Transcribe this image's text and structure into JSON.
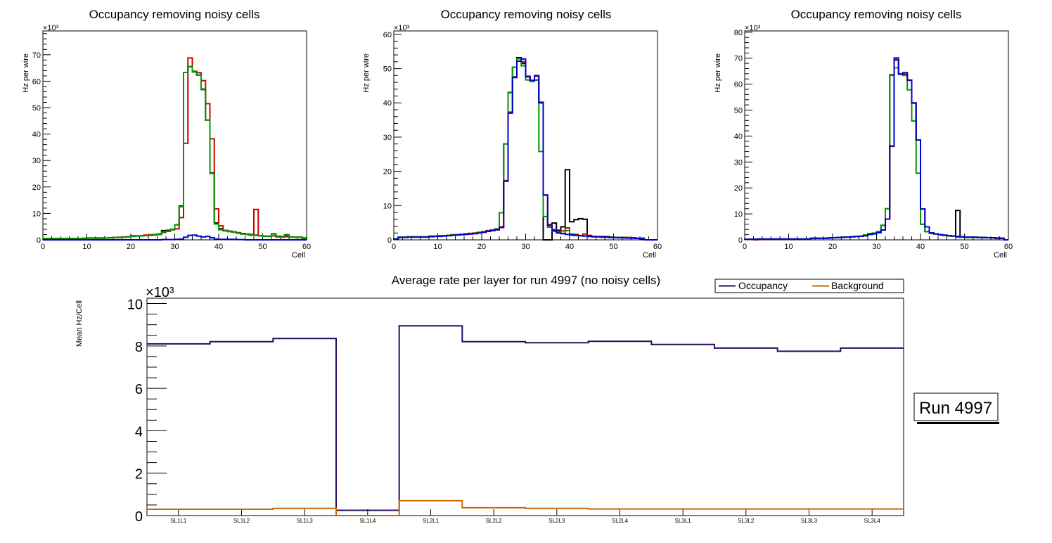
{
  "chart_data": [
    {
      "type": "line",
      "subtype": "step-histogram",
      "title": "Occupancy removing noisy cells",
      "xlabel": "Cell",
      "ylabel": "Hz per wire",
      "y_multiplier_label": "×10³",
      "xlim": [
        0,
        60
      ],
      "ylim": [
        0,
        79
      ],
      "x_ticks": [
        0,
        10,
        20,
        30,
        40,
        50,
        60
      ],
      "y_ticks": [
        0,
        10,
        20,
        30,
        40,
        50,
        60,
        70
      ],
      "bin_edges_start": 0,
      "bin_width": 1,
      "series": [
        {
          "name": "black",
          "color": "#000000",
          "values": [
            0.5,
            0.5,
            0.5,
            0.5,
            0.5,
            0.5,
            0.5,
            0.5,
            0.5,
            0.6,
            0.7,
            0.7,
            0.7,
            0.7,
            0.7,
            0.8,
            0.8,
            0.9,
            1.0,
            1.2,
            1.5,
            1.5,
            1.6,
            1.7,
            1.9,
            2.0,
            2.2,
            3.5,
            3.6,
            4.0,
            5.7,
            12.8,
            63.3,
            65.5,
            63.7,
            62.3,
            57.0,
            45.3,
            25.3,
            6.4,
            4.2,
            3.6,
            3.3,
            3.0,
            2.7,
            2.4,
            2.1,
            1.8,
            1.8,
            1.6,
            1.4,
            1.4,
            2.3,
            1.3,
            1.2,
            1.8,
            1.1,
            1.0,
            1.0,
            0.7
          ]
        },
        {
          "name": "red",
          "color": "#cc0000",
          "values": [
            0.3,
            0.3,
            0.3,
            0.3,
            0.3,
            0.3,
            0.3,
            0.4,
            0.5,
            0.5,
            0.6,
            0.6,
            0.6,
            0.6,
            0.7,
            0.8,
            0.9,
            1.0,
            1.1,
            1.2,
            1.4,
            1.5,
            1.6,
            1.8,
            1.9,
            2.0,
            2.1,
            2.8,
            3.2,
            3.8,
            4.2,
            8.4,
            36.5,
            68.8,
            63.5,
            63.2,
            60.2,
            51.5,
            38.2,
            11.7,
            5.3,
            3.6,
            3.2,
            3.0,
            2.7,
            2.3,
            2.2,
            2.1,
            11.5,
            1.6,
            1.4,
            1.3,
            1.5,
            1.4,
            1.3,
            1.2,
            1.1,
            1.0,
            1.0,
            0.6
          ]
        },
        {
          "name": "green",
          "color": "#009900",
          "values": [
            0.4,
            0.4,
            0.4,
            0.4,
            0.4,
            0.4,
            0.4,
            0.4,
            0.5,
            0.5,
            0.6,
            0.6,
            0.6,
            0.6,
            0.7,
            0.7,
            0.8,
            0.9,
            1.0,
            1.1,
            1.3,
            1.4,
            1.5,
            1.6,
            1.7,
            1.8,
            2.0,
            3.0,
            3.3,
            3.9,
            5.7,
            12.5,
            63.3,
            65.5,
            63.5,
            62.3,
            56.8,
            45.3,
            25.1,
            6.0,
            3.8,
            3.4,
            3.1,
            2.9,
            2.5,
            2.2,
            2.0,
            1.8,
            1.7,
            1.5,
            1.3,
            1.3,
            2.2,
            1.1,
            1.0,
            2.0,
            1.0,
            1.0,
            0.9,
            0.5
          ]
        },
        {
          "name": "blue",
          "color": "#0000cc",
          "values": [
            0,
            0,
            0,
            0,
            0,
            0,
            0,
            0,
            0,
            0,
            0,
            0,
            0,
            0,
            0,
            0,
            0,
            0,
            0,
            0,
            0,
            0,
            0,
            0,
            0,
            0,
            0,
            0.1,
            0.1,
            0.1,
            0.2,
            0.3,
            1.0,
            1.7,
            1.8,
            1.4,
            1.1,
            1.3,
            0.8,
            0.3,
            0.2,
            0.2,
            0.2,
            0.2,
            0.1,
            0.1,
            0,
            0,
            0,
            0,
            0,
            0,
            0,
            0,
            0,
            0,
            0,
            0,
            0,
            0
          ]
        }
      ]
    },
    {
      "type": "line",
      "subtype": "step-histogram",
      "title": "Occupancy removing noisy cells",
      "xlabel": "Cell",
      "ylabel": "Hz per wire",
      "y_multiplier_label": "×10³",
      "xlim": [
        0,
        60
      ],
      "ylim": [
        0,
        61
      ],
      "x_ticks": [
        0,
        10,
        20,
        30,
        40,
        50,
        60
      ],
      "y_ticks": [
        0,
        10,
        20,
        30,
        40,
        50,
        60
      ],
      "bin_edges_start": 0,
      "bin_width": 1,
      "series": [
        {
          "name": "black",
          "color": "#000000",
          "values": [
            0.3,
            0.8,
            0.8,
            0.9,
            0.9,
            0.9,
            0.9,
            0.9,
            1.0,
            1.0,
            1.1,
            1.2,
            1.3,
            1.5,
            1.5,
            1.6,
            1.7,
            1.8,
            1.9,
            2.1,
            2.3,
            2.6,
            2.8,
            3.1,
            7.9,
            28.0,
            43.0,
            50.4,
            53.2,
            51.5,
            47.7,
            46.5,
            46.7,
            40.0,
            0,
            0,
            4.9,
            2.8,
            3.8,
            20.5,
            5.3,
            5.9,
            6.2,
            6.0,
            1.2,
            1.0,
            0.9,
            0.9,
            0.8,
            0.8,
            0.7,
            0.7,
            0.7,
            0.6,
            0.6,
            0.5,
            0.5,
            0,
            0,
            0
          ]
        },
        {
          "name": "red",
          "color": "#cc0000",
          "values": [
            0.3,
            0.8,
            0.8,
            0.9,
            0.9,
            0.9,
            0.9,
            0.9,
            1.1,
            1.1,
            1.2,
            1.2,
            1.3,
            1.4,
            1.5,
            1.6,
            1.8,
            1.9,
            2.0,
            2.2,
            2.4,
            2.7,
            2.9,
            3.2,
            3.8,
            17.3,
            37.3,
            47.6,
            52.2,
            52.0,
            47.8,
            46.6,
            48.0,
            40.2,
            13.1,
            4.5,
            3.0,
            2.5,
            2.6,
            3.5,
            1.7,
            1.6,
            1.2,
            1.7,
            1.3,
            1.0,
            1.0,
            1.0,
            1.0,
            0.7,
            0.7,
            0.7,
            0.6,
            0.7,
            0.5,
            0.5,
            0.4,
            0,
            0,
            0
          ]
        },
        {
          "name": "green",
          "color": "#009900",
          "values": [
            0.3,
            0.8,
            0.8,
            0.9,
            0.9,
            0.9,
            0.9,
            0.9,
            1.0,
            1.0,
            1.1,
            1.2,
            1.3,
            1.4,
            1.5,
            1.6,
            1.7,
            1.8,
            1.9,
            2.1,
            2.3,
            2.5,
            2.8,
            3.1,
            7.9,
            28.0,
            43.1,
            50.4,
            52.9,
            50.8,
            46.7,
            46.3,
            46.6,
            25.8,
            6.8,
            3.7,
            2.5,
            2.2,
            1.9,
            2.7,
            1.4,
            1.3,
            1.2,
            1.1,
            1.0,
            0.9,
            0.9,
            0.8,
            0.8,
            0.7,
            0.7,
            0.7,
            0.6,
            0.6,
            0.5,
            0.5,
            0.4,
            0,
            0,
            0
          ]
        },
        {
          "name": "blue",
          "color": "#0000cc",
          "values": [
            0.2,
            0.7,
            0.7,
            0.8,
            0.8,
            0.8,
            0.8,
            0.8,
            0.9,
            1.0,
            1.0,
            1.1,
            1.2,
            1.3,
            1.4,
            1.5,
            1.6,
            1.7,
            1.8,
            2.0,
            2.2,
            2.5,
            2.7,
            2.9,
            3.6,
            17.1,
            37.0,
            47.4,
            52.2,
            52.8,
            47.6,
            46.5,
            47.8,
            40.1,
            13.1,
            4.2,
            2.7,
            2.0,
            1.8,
            1.6,
            1.4,
            1.3,
            1.2,
            1.1,
            1.0,
            0.9,
            0.9,
            0.8,
            0.8,
            0.7,
            0.7,
            0.6,
            0.6,
            0.5,
            0.5,
            0.4,
            0.3,
            0,
            0,
            0
          ]
        }
      ]
    },
    {
      "type": "line",
      "subtype": "step-histogram",
      "title": "Occupancy removing noisy cells",
      "xlabel": "Cell",
      "ylabel": "Hz per wire",
      "y_multiplier_label": "×10³",
      "xlim": [
        0,
        60
      ],
      "ylim": [
        0,
        80.5
      ],
      "x_ticks": [
        0,
        10,
        20,
        30,
        40,
        50,
        60
      ],
      "y_ticks": [
        0,
        10,
        20,
        30,
        40,
        50,
        60,
        70,
        80
      ],
      "bin_edges_start": 0,
      "bin_width": 1,
      "series": [
        {
          "name": "black",
          "color": "#000000",
          "values": [
            0.2,
            0.2,
            0.2,
            0.3,
            0.3,
            0.3,
            0.3,
            0.3,
            0.3,
            0.3,
            0.3,
            0.3,
            0.3,
            0.3,
            0.3,
            0.6,
            0.6,
            0.6,
            0.6,
            0.7,
            0.8,
            0.9,
            1.0,
            1.1,
            1.2,
            1.3,
            1.4,
            1.6,
            2.1,
            2.3,
            2.8,
            5.6,
            12.0,
            63.6,
            69.3,
            64.0,
            63.8,
            61.5,
            52.8,
            38.5,
            6.0,
            3.2,
            2.5,
            2.3,
            2.0,
            1.8,
            1.6,
            1.5,
            11.3,
            1.2,
            1.0,
            1.0,
            1.0,
            0.9,
            0.9,
            0.8,
            0.8,
            0.7,
            0.6,
            0
          ]
        },
        {
          "name": "red",
          "color": "#cc0000",
          "values": [
            0.2,
            0.2,
            0.0,
            0.3,
            0.3,
            0.3,
            0.3,
            0.3,
            0.3,
            0.3,
            0.3,
            0.3,
            0.3,
            0.3,
            0.3,
            0.6,
            0.6,
            0.6,
            0.6,
            0.7,
            0.8,
            0.9,
            1.0,
            1.1,
            1.2,
            1.3,
            1.4,
            1.6,
            2.1,
            2.3,
            2.8,
            3.8,
            8.0,
            36.0,
            69.5,
            64.0,
            63.8,
            61.5,
            52.8,
            38.5,
            11.9,
            5.0,
            2.7,
            2.3,
            2.0,
            1.8,
            1.6,
            1.5,
            1.3,
            1.2,
            1.0,
            1.0,
            1.0,
            0.9,
            0.9,
            0.8,
            0.8,
            0.5,
            0.6,
            0
          ]
        },
        {
          "name": "green",
          "color": "#009900",
          "values": [
            0.2,
            0.2,
            0.2,
            0.3,
            0.3,
            0.3,
            0.3,
            0.3,
            0.3,
            0.3,
            0.3,
            0.3,
            0.3,
            0.3,
            0.3,
            0.6,
            0.6,
            0.6,
            0.6,
            0.8,
            0.8,
            0.9,
            1.0,
            1.1,
            1.2,
            1.3,
            1.4,
            1.9,
            2.4,
            2.6,
            3.2,
            5.6,
            12.0,
            63.4,
            66.3,
            64.0,
            63.4,
            57.8,
            45.8,
            25.7,
            6.0,
            3.2,
            2.5,
            2.2,
            1.9,
            1.7,
            1.5,
            1.4,
            1.1,
            1.0,
            0.9,
            0.9,
            0.9,
            0.9,
            0.8,
            0.8,
            0.7,
            0.7,
            0.6,
            0
          ]
        },
        {
          "name": "blue",
          "color": "#0000cc",
          "values": [
            0.2,
            0.2,
            0.2,
            0.3,
            0.3,
            0.3,
            0.3,
            0.3,
            0.3,
            0.3,
            0.3,
            0.3,
            0.3,
            0.3,
            0.3,
            0.6,
            0.6,
            0.6,
            0.6,
            0.7,
            0.8,
            0.9,
            1.0,
            1.1,
            1.2,
            1.3,
            1.4,
            1.6,
            2.1,
            2.3,
            2.8,
            3.8,
            8.0,
            36.2,
            70.1,
            63.8,
            64.4,
            61.6,
            52.7,
            38.5,
            11.9,
            5.0,
            2.7,
            2.3,
            2.0,
            1.8,
            1.6,
            1.5,
            1.3,
            1.2,
            1.0,
            1.0,
            1.0,
            0.9,
            0.9,
            0.8,
            0.8,
            0.7,
            0.6,
            0
          ]
        }
      ]
    },
    {
      "type": "line",
      "subtype": "step-histogram",
      "title": "Average rate per layer for run 4997 (no noisy cells)",
      "xlabel": "",
      "ylabel": "Mean Hz/Cell",
      "y_multiplier_label": "×10³",
      "ylim": [
        0,
        10.25
      ],
      "y_ticks": [
        0,
        2,
        4,
        6,
        8,
        10
      ],
      "categories": [
        "SL1L1",
        "SL1L2",
        "SL1L3",
        "SL1L4",
        "SL2L1",
        "SL2L2",
        "SL2L3",
        "SL2L4",
        "SL3L1",
        "SL3L2",
        "SL3L3",
        "SL3L4"
      ],
      "legend": {
        "position": "top-right",
        "entries": [
          "Occupancy",
          "Background"
        ]
      },
      "annotation": "Run 4997",
      "series": [
        {
          "name": "Occupancy",
          "color": "#2b0a5e",
          "values": [
            8.1,
            8.2,
            8.35,
            0.25,
            8.95,
            8.2,
            8.15,
            8.22,
            8.07,
            7.9,
            7.75,
            7.9
          ]
        },
        {
          "name": "Background",
          "color": "#cc6600",
          "values": [
            0.3,
            0.3,
            0.34,
            0.0,
            0.7,
            0.37,
            0.34,
            0.31,
            0.31,
            0.31,
            0.31,
            0.31
          ]
        }
      ]
    }
  ]
}
